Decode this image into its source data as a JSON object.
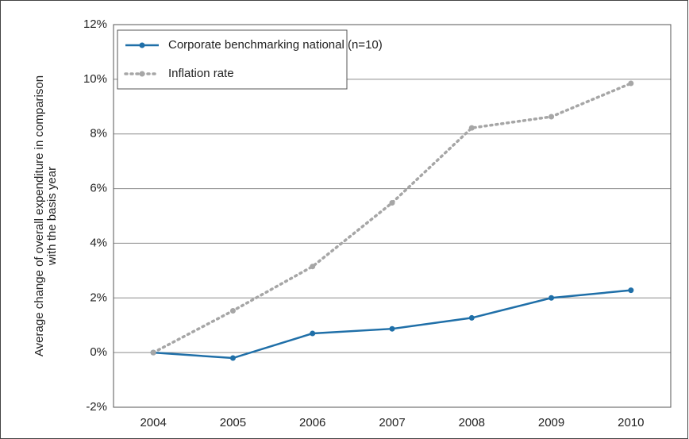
{
  "chart_data": {
    "type": "line",
    "y_label": [
      "Average change of overall expenditure in comparison",
      "with the basis year"
    ],
    "categories": [
      "2004",
      "2005",
      "2006",
      "2007",
      "2008",
      "2009",
      "2010"
    ],
    "series": [
      {
        "name": "Corporate benchmarking national (n=10)",
        "color": "#1f6fa8",
        "style": "solid",
        "values": [
          0,
          -0.2,
          0.7,
          0.87,
          1.27,
          2.0,
          2.28
        ]
      },
      {
        "name": "Inflation rate",
        "color": "#a6a6a6",
        "style": "dotted",
        "values": [
          0,
          1.53,
          3.15,
          5.48,
          8.22,
          8.63,
          9.85
        ]
      }
    ],
    "ylim": [
      -2,
      12
    ],
    "yticks": [
      {
        "value": -2,
        "label": "-2%"
      },
      {
        "value": 0,
        "label": "0%"
      },
      {
        "value": 2,
        "label": "2%"
      },
      {
        "value": 4,
        "label": "4%"
      },
      {
        "value": 6,
        "label": "6%"
      },
      {
        "value": 8,
        "label": "8%"
      },
      {
        "value": 10,
        "label": "10%"
      },
      {
        "value": 12,
        "label": "12%"
      }
    ],
    "grid": true,
    "legend": "top-left"
  }
}
